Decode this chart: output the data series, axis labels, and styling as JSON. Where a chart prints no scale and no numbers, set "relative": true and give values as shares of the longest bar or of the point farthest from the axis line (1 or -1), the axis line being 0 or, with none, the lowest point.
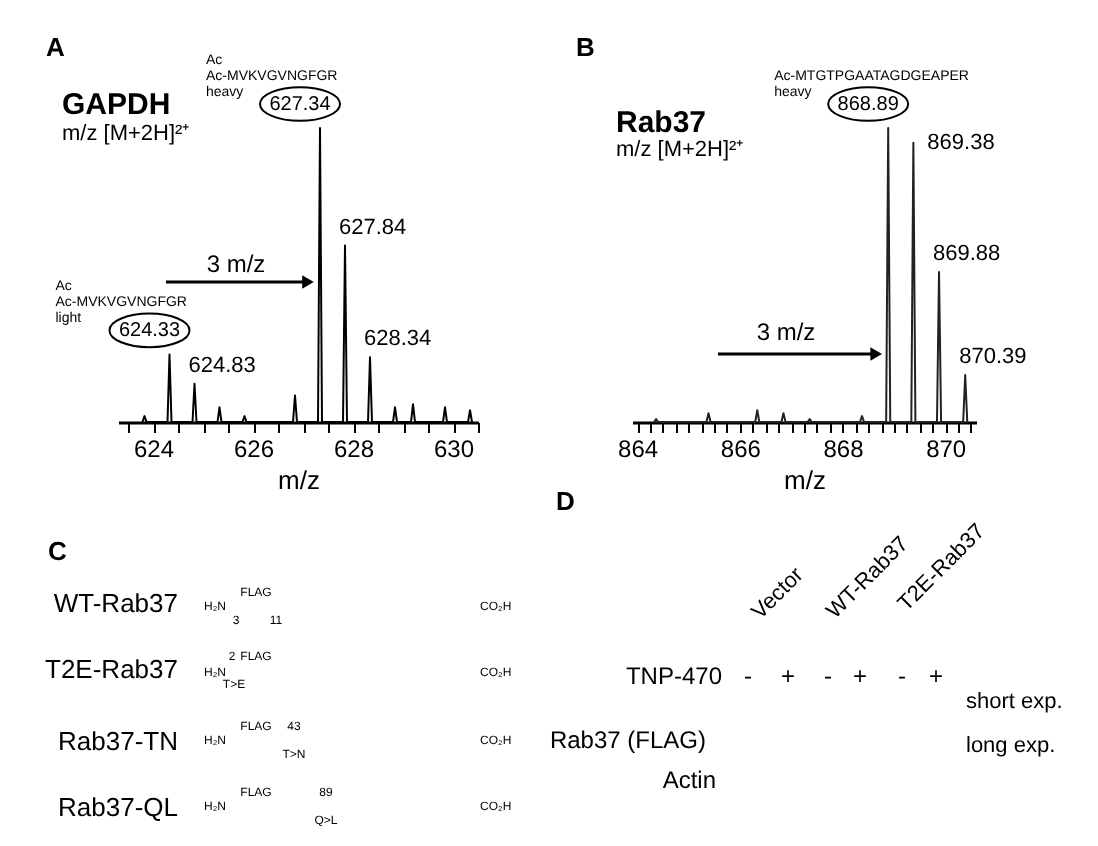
{
  "chart_data": [
    {
      "type": "line",
      "title": "GAPDH",
      "subtitle": "m/z [M+2H]²⁺",
      "xlabel": "m/z",
      "relative": true,
      "color": "#000000",
      "xlim": [
        623.3,
        630.5
      ],
      "xticks": [
        {
          "value": 623.5,
          "label": null
        },
        624,
        {
          "value": 624.5,
          "label": null
        },
        {
          "value": 625,
          "label": null
        },
        {
          "value": 625.5,
          "label": null
        },
        626,
        {
          "value": 626.5,
          "label": null
        },
        {
          "value": 627,
          "label": null
        },
        {
          "value": 627.5,
          "label": null
        },
        628,
        {
          "value": 628.5,
          "label": null
        },
        {
          "value": 629,
          "label": null
        },
        {
          "value": 629.5,
          "label": null
        },
        630,
        {
          "value": 630.5,
          "label": null
        }
      ],
      "x": [
        623.79,
        623.83,
        623.87,
        624.29,
        624.33,
        624.37,
        624.79,
        624.83,
        624.87,
        625.29,
        625.33,
        625.37,
        625.79,
        625.83,
        625.87,
        626.8,
        626.84,
        626.88,
        627.3,
        627.34,
        627.38,
        627.8,
        627.84,
        627.88,
        628.3,
        628.34,
        628.38,
        628.8,
        628.84,
        628.88,
        629.16,
        629.2,
        629.24,
        629.8,
        629.84,
        629.88,
        630.3,
        630.34,
        630.38
      ],
      "values": [
        0,
        0.02,
        0,
        0,
        0.23,
        0,
        0,
        0.13,
        0,
        0,
        0.05,
        0,
        0,
        0.02,
        0,
        0,
        0.09,
        0,
        0,
        1,
        0,
        0,
        0.6,
        0,
        0,
        0.22,
        0,
        0,
        0.05,
        0,
        0,
        0.06,
        0,
        0,
        0.05,
        0,
        0,
        0.04,
        0
      ],
      "annotations": [
        "A",
        "3 m/z",
        {
          "text": "624.33",
          "x": 624.33,
          "y": 0.23
        },
        {
          "text": "Ac\nAc-MVKVGVNGFGR\nlight",
          "x": 624.33,
          "y": 0.23
        },
        {
          "text": "624.83",
          "x": 624.83,
          "y": 0.13
        },
        {
          "text": "627.34",
          "x": 627.34,
          "y": 1
        },
        {
          "text": "Ac\nAc-MVKVGVNGFGR\nheavy",
          "x": 627.34,
          "y": 1
        },
        {
          "text": "627.84",
          "x": 627.84,
          "y": 0.6
        },
        {
          "text": "628.34",
          "x": 628.34,
          "y": 0.22
        }
      ]
    },
    {
      "type": "line",
      "title": "Rab37",
      "subtitle": "m/z [M+2H]²⁺",
      "xlabel": "m/z",
      "relative": true,
      "color": "#222222",
      "xlim": [
        863.9,
        870.6
      ],
      "xticks": [
        864,
        {
          "value": 864.25,
          "label": null
        },
        {
          "value": 864.5,
          "label": null
        },
        {
          "value": 864.75,
          "label": null
        },
        {
          "value": 865,
          "label": null
        },
        {
          "value": 865.25,
          "label": null
        },
        {
          "value": 865.5,
          "label": null
        },
        {
          "value": 865.75,
          "label": null
        },
        866,
        {
          "value": 866.25,
          "label": null
        },
        {
          "value": 866.5,
          "label": null
        },
        {
          "value": 866.75,
          "label": null
        },
        {
          "value": 867,
          "label": null
        },
        {
          "value": 867.25,
          "label": null
        },
        {
          "value": 867.5,
          "label": null
        },
        {
          "value": 867.75,
          "label": null
        },
        868,
        {
          "value": 868.25,
          "label": null
        },
        {
          "value": 868.5,
          "label": null
        },
        {
          "value": 868.75,
          "label": null
        },
        {
          "value": 869,
          "label": null
        },
        {
          "value": 869.25,
          "label": null
        },
        {
          "value": 869.5,
          "label": null
        },
        {
          "value": 869.75,
          "label": null
        },
        870,
        {
          "value": 870.25,
          "label": null
        },
        {
          "value": 870.5,
          "label": null
        }
      ],
      "x": [
        864.33,
        864.37,
        864.41,
        865.35,
        865.39,
        865.43,
        866.3,
        866.34,
        866.38,
        866.81,
        866.85,
        866.89,
        867.32,
        867.36,
        867.4,
        868.34,
        868.38,
        868.42,
        868.85,
        868.89,
        868.93,
        869.34,
        869.38,
        869.42,
        869.84,
        869.88,
        869.92,
        870.35,
        870.39,
        870.43
      ],
      "values": [
        0,
        0.01,
        0,
        0,
        0.03,
        0,
        0,
        0.04,
        0,
        0,
        0.03,
        0,
        0,
        0.01,
        0,
        0,
        0.02,
        0,
        0,
        1,
        0,
        0,
        0.95,
        0,
        0,
        0.51,
        0,
        0,
        0.16,
        0
      ],
      "annotations": [
        "B",
        "3 m/z",
        {
          "text": "868.89",
          "x": 868.89,
          "y": 1
        },
        {
          "text": "Ac-MTGTPGAATAGDGEAPER\nheavy",
          "x": 868.89,
          "y": 1
        },
        {
          "text": "869.38",
          "x": 869.38,
          "y": 0.95
        },
        {
          "text": "869.88",
          "x": 869.88,
          "y": 0.51
        },
        {
          "text": "870.39",
          "x": 870.39,
          "y": 0.16
        }
      ]
    },
    {
      "type": "other",
      "categories": [
        "WT-Rab37",
        "T2E-Rab37",
        "Rab37-TN",
        "Rab37-QL"
      ],
      "annotations": [
        "C",
        "H₂N",
        "FLAG",
        "CO₂H",
        "3",
        "11",
        "H₂N",
        "2",
        "FLAG",
        "CO₂H",
        "T>E",
        "H₂N",
        "FLAG",
        "43",
        "CO₂H",
        "T>N",
        "H₂N",
        "FLAG",
        "89",
        "CO₂H",
        "Q>L"
      ]
    },
    {
      "type": "other",
      "categories": [
        "Vector",
        "WT-Rab37",
        "T2E-Rab37"
      ],
      "annotations": [
        "D",
        "TNP-470",
        "-",
        "+",
        "-",
        "+",
        "-",
        "+",
        "Rab37 (FLAG)",
        "short exp.",
        "long exp.",
        "Actin"
      ]
    }
  ]
}
